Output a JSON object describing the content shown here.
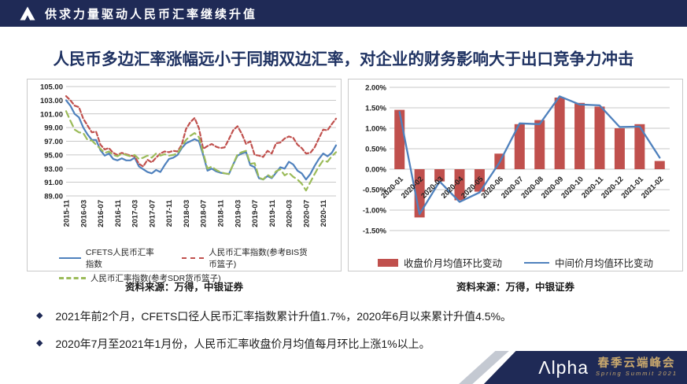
{
  "topbar": {
    "title": "供求力量驱动人民币汇率继续升值"
  },
  "slide_title": "人民币多边汇率涨幅远小于同期双边汇率，对企业的财务影响大于出口竞争力冲击",
  "bullets": [
    {
      "text": "2021年前2个月，CFETS口径人民币汇率指数累计升值1.7%，2020年6月以来累计升值4.5%。"
    },
    {
      "text": "2020年7月至2021年1月份，人民币汇率收盘价月均值每月环比上涨1%以上。"
    }
  ],
  "footer": {
    "logo_glyph": "Λ",
    "logo_rest": "lpha",
    "title_cn": "春季云端峰会",
    "subtitle_en": "Spring Summit 2021"
  },
  "colors": {
    "navy": "#1f2a56",
    "title_blue": "#1f3262",
    "bar_red": "#c0504d",
    "line_blue": "#4f81bd",
    "line_green": "#9bbb59",
    "gold": "#c9a86d",
    "grid": "#b5b5b5",
    "axis_text": "#222222"
  },
  "chart_data": [
    {
      "type": "line",
      "source": "资料来源：万得，中银证券",
      "ylim": [
        89,
        105
      ],
      "ytick_step": 2,
      "y_tick_labels": [
        "105.00",
        "103.00",
        "101.00",
        "99.00",
        "97.00",
        "95.00",
        "93.00",
        "91.00",
        "89.00"
      ],
      "x_tick_labels": [
        "2015-11",
        "2016-03",
        "2016-07",
        "2016-11",
        "2017-03",
        "2017-07",
        "2017-11",
        "2018-03",
        "2018-07",
        "2018-11",
        "2019-03",
        "2019-07",
        "2019-11",
        "2020-03",
        "2020-07",
        "2020-11"
      ],
      "tick_every": 4,
      "months": [
        "2015-11",
        "2015-12",
        "2016-01",
        "2016-02",
        "2016-03",
        "2016-04",
        "2016-05",
        "2016-06",
        "2016-07",
        "2016-08",
        "2016-09",
        "2016-10",
        "2016-11",
        "2016-12",
        "2017-01",
        "2017-02",
        "2017-03",
        "2017-04",
        "2017-05",
        "2017-06",
        "2017-07",
        "2017-08",
        "2017-09",
        "2017-10",
        "2017-11",
        "2017-12",
        "2018-01",
        "2018-02",
        "2018-03",
        "2018-04",
        "2018-05",
        "2018-06",
        "2018-07",
        "2018-08",
        "2018-09",
        "2018-10",
        "2018-11",
        "2018-12",
        "2019-01",
        "2019-02",
        "2019-03",
        "2019-04",
        "2019-05",
        "2019-06",
        "2019-07",
        "2019-08",
        "2019-09",
        "2019-10",
        "2019-11",
        "2019-12",
        "2020-01",
        "2020-02",
        "2020-03",
        "2020-04",
        "2020-05",
        "2020-06",
        "2020-07",
        "2020-08",
        "2020-09",
        "2020-10",
        "2020-11",
        "2020-12",
        "2021-01",
        "2021-02"
      ],
      "grid": true,
      "legend_position": "bottom",
      "series": [
        {
          "name": "CFETS人民币汇率指数",
          "style": "solid",
          "color": "#4f81bd",
          "values": [
            103.0,
            102.2,
            101.0,
            100.5,
            99.0,
            98.0,
            97.2,
            97.2,
            95.7,
            94.9,
            95.2,
            94.4,
            94.2,
            94.5,
            94.2,
            94.2,
            94.6,
            93.3,
            92.9,
            92.5,
            92.3,
            92.8,
            92.5,
            93.5,
            94.4,
            94.6,
            95.0,
            96.0,
            96.7,
            97.0,
            97.3,
            97.0,
            95.0,
            92.7,
            93.0,
            92.6,
            92.4,
            92.3,
            92.2,
            93.6,
            94.9,
            95.2,
            95.4,
            93.5,
            93.2,
            91.6,
            91.4,
            91.9,
            91.6,
            92.4,
            93.2,
            93.0,
            94.0,
            93.6,
            92.7,
            92.3,
            91.4,
            92.2,
            93.4,
            94.4,
            95.2,
            94.8,
            95.3,
            96.4
          ]
        },
        {
          "name": "人民币汇率指数(参考BIS货币篮子)",
          "style": "dashed",
          "color": "#c0504d",
          "values": [
            103.6,
            103.0,
            102.2,
            102.0,
            100.3,
            99.3,
            98.3,
            98.4,
            96.5,
            95.8,
            96.0,
            95.3,
            95.0,
            95.3,
            95.1,
            94.9,
            94.8,
            93.7,
            93.3,
            94.3,
            93.9,
            94.6,
            95.2,
            95.5,
            95.4,
            95.6,
            95.5,
            96.5,
            98.8,
            99.8,
            100.4,
            98.9,
            95.9,
            96.3,
            96.6,
            96.2,
            96.0,
            96.1,
            97.3,
            98.6,
            99.2,
            98.1,
            96.6,
            97.0,
            95.0,
            94.9,
            94.7,
            95.6,
            95.2,
            96.7,
            96.8,
            97.4,
            97.7,
            97.5,
            96.5,
            96.0,
            95.2,
            95.3,
            96.1,
            97.4,
            98.7,
            98.6,
            99.5,
            100.3
          ]
        },
        {
          "name": "人民币汇率指数(参考SDR货币篮子)",
          "style": "long-dash",
          "color": "#9bbb59",
          "values": [
            101.4,
            100.0,
            98.7,
            98.3,
            98.2,
            97.2,
            97.1,
            96.5,
            95.9,
            95.3,
            95.5,
            95.0,
            94.8,
            95.2,
            95.0,
            94.8,
            95.0,
            94.4,
            94.6,
            94.9,
            94.6,
            95.2,
            94.9,
            95.1,
            94.9,
            95.0,
            95.2,
            96.2,
            97.2,
            97.8,
            98.2,
            97.6,
            95.3,
            93.0,
            93.3,
            92.8,
            92.5,
            92.3,
            92.2,
            93.6,
            95.1,
            95.4,
            95.6,
            93.7,
            93.8,
            91.7,
            91.4,
            92.1,
            91.7,
            92.6,
            92.9,
            92.0,
            92.4,
            91.8,
            91.4,
            90.8,
            89.8,
            91.0,
            92.2,
            93.3,
            94.2,
            94.0,
            94.8,
            95.4
          ]
        }
      ]
    },
    {
      "type": "bar+line",
      "source": "资料来源：万得，中银证券",
      "ylim": [
        -1.5,
        2.0
      ],
      "ytick_step": 0.5,
      "y_tick_labels": [
        "2.00%",
        "1.50%",
        "1.00%",
        "0.50%",
        "0.00%",
        "-0.50%",
        "-1.00%",
        "-1.50%"
      ],
      "categories": [
        "2020-01",
        "2020-02",
        "2020-03",
        "2020-04",
        "2020-05",
        "2020-06",
        "2020-07",
        "2020-08",
        "2020-09",
        "2020-10",
        "2020-11",
        "2020-12",
        "2021-01",
        "2021-02"
      ],
      "grid": true,
      "legend_position": "bottom",
      "series": [
        {
          "name": "收盘价月均值环比变动",
          "type": "bar",
          "color": "#c0504d",
          "values": [
            1.45,
            -1.18,
            -0.3,
            -0.76,
            -0.55,
            0.38,
            1.1,
            1.2,
            1.75,
            1.62,
            1.53,
            1.0,
            1.1,
            0.2
          ]
        },
        {
          "name": "中间价月均值环比变动",
          "type": "line",
          "color": "#4f81bd",
          "values": [
            1.4,
            -1.1,
            -0.3,
            -0.8,
            -0.57,
            0.17,
            1.12,
            1.1,
            1.78,
            1.58,
            1.56,
            1.03,
            1.04,
            0.28
          ]
        }
      ]
    }
  ]
}
